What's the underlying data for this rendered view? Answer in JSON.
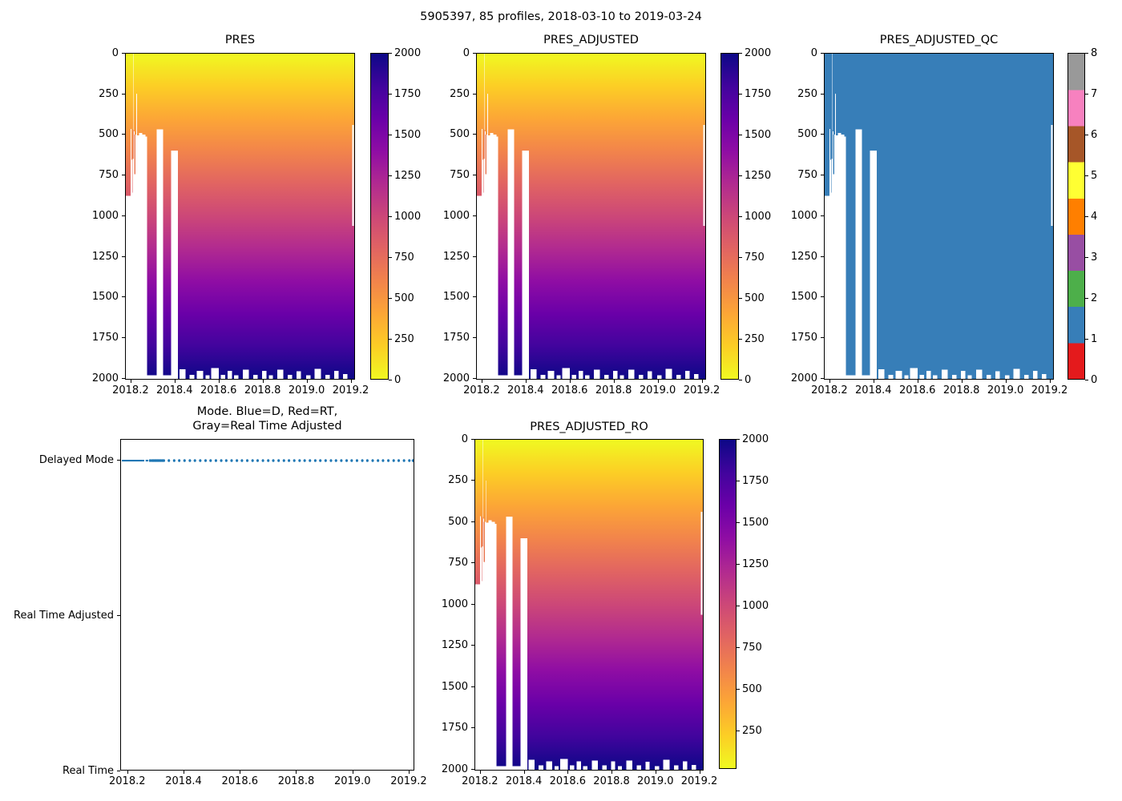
{
  "figure": {
    "title": "5905397, 85 profiles, 2018-03-10 to 2019-03-24"
  },
  "axes": {
    "x": {
      "lim": [
        2018.175,
        2019.22
      ],
      "ticks": [
        2018.2,
        2018.4,
        2018.6,
        2018.8,
        2019.0,
        2019.2
      ],
      "tick_labels": [
        "2018.2",
        "2018.4",
        "2018.6",
        "2018.8",
        "2019.0",
        "2019.2"
      ]
    },
    "depth": {
      "lim": [
        0,
        2010
      ],
      "ticks": [
        0,
        250,
        500,
        750,
        1000,
        1250,
        1500,
        1750,
        2000
      ],
      "tick_labels": [
        "0",
        "250",
        "500",
        "750",
        "1000",
        "1250",
        "1500",
        "1750",
        "2000"
      ]
    }
  },
  "colors": {
    "plasma_top_to_bottom": [
      "#f0f921",
      "#fcce25",
      "#fca636",
      "#f2844b",
      "#e16462",
      "#cc4778",
      "#b12a90",
      "#8f0da4",
      "#6a00a8",
      "#41049d",
      "#0d0887"
    ],
    "qc_palette_0_to_8": [
      "#e41a1c",
      "#377eb8",
      "#4daf4a",
      "#984ea3",
      "#ff7f00",
      "#ffff33",
      "#a65628",
      "#f781bf",
      "#999999"
    ],
    "qc_fill": "#377eb8",
    "mode_marker": "#1f77b4",
    "trace_line": "#e8744c",
    "gap_fill": "#ffffff"
  },
  "gaps": {
    "left_region_boundary": [
      [
        2018.175,
        880
      ],
      [
        2018.197,
        880
      ],
      [
        2018.197,
        465
      ],
      [
        2018.2005,
        465
      ],
      [
        2018.2005,
        655
      ],
      [
        2018.2035,
        655
      ],
      [
        2018.2035,
        860
      ],
      [
        2018.2065,
        860
      ],
      [
        2018.2065,
        470
      ],
      [
        2018.2095,
        470
      ],
      [
        2018.2095,
        140
      ],
      [
        2018.2125,
        140
      ],
      [
        2018.2125,
        480
      ],
      [
        2018.2155,
        480
      ],
      [
        2018.2155,
        745
      ],
      [
        2018.2185,
        745
      ],
      [
        2018.2185,
        500
      ],
      [
        2018.2225,
        500
      ],
      [
        2018.2225,
        248
      ],
      [
        2018.2255,
        248
      ],
      [
        2018.2255,
        505
      ],
      [
        2018.2355,
        505
      ],
      [
        2018.2355,
        490
      ],
      [
        2018.2505,
        490
      ],
      [
        2018.2505,
        500
      ],
      [
        2018.2655,
        500
      ],
      [
        2018.2655,
        512
      ],
      [
        2018.272,
        512
      ]
    ],
    "top_spike": [
      2018.2095,
      2018.2125,
      0,
      140
    ],
    "shallow_columns": [
      [
        2018.316,
        2018.346,
        468
      ],
      [
        2018.383,
        2018.414,
        600
      ]
    ],
    "bottom_notches": [
      [
        2018.272,
        2018.316,
        1988
      ],
      [
        2018.346,
        2018.383,
        1988
      ],
      [
        2018.42,
        2018.448,
        1950
      ],
      [
        2018.466,
        2018.488,
        1984
      ],
      [
        2018.5,
        2018.528,
        1960
      ],
      [
        2018.54,
        2018.558,
        1988
      ],
      [
        2018.565,
        2018.6,
        1944
      ],
      [
        2018.61,
        2018.63,
        1984
      ],
      [
        2018.64,
        2018.66,
        1960
      ],
      [
        2018.67,
        2018.69,
        1988
      ],
      [
        2018.71,
        2018.738,
        1954
      ],
      [
        2018.758,
        2018.778,
        1984
      ],
      [
        2018.798,
        2018.818,
        1960
      ],
      [
        2018.83,
        2018.848,
        1988
      ],
      [
        2018.868,
        2018.896,
        1954
      ],
      [
        2018.916,
        2018.936,
        1984
      ],
      [
        2018.956,
        2018.976,
        1962
      ],
      [
        2019.0,
        2019.02,
        1988
      ],
      [
        2019.038,
        2019.068,
        1948
      ],
      [
        2019.088,
        2019.108,
        1984
      ],
      [
        2019.128,
        2019.148,
        1960
      ],
      [
        2019.168,
        2019.188,
        1980
      ]
    ],
    "right_sliver": [
      2019.211,
      2019.218,
      440,
      1065
    ],
    "trace_lines": [
      [
        2018.2085,
        470,
        650
      ],
      [
        2018.216,
        500,
        745
      ]
    ]
  },
  "chart_data": [
    {
      "id": "pres",
      "type": "heatmap",
      "title": "PRES",
      "value": "pressure (dbar), increases with depth 0 to 2000",
      "colorbar": {
        "vmin": 0,
        "vmax": 2000,
        "ticks": [
          0,
          250,
          500,
          750,
          1000,
          1250,
          1500,
          1750,
          2000
        ],
        "tick_labels": [
          "0",
          "250",
          "500",
          "750",
          "1000",
          "1250",
          "1500",
          "1750",
          "2000"
        ]
      }
    },
    {
      "id": "pres-adjusted",
      "type": "heatmap",
      "title": "PRES_ADJUSTED",
      "value": "pressure (dbar), increases with depth 0 to 2000",
      "colorbar": {
        "vmin": 0,
        "vmax": 2000,
        "ticks": [
          0,
          250,
          500,
          750,
          1000,
          1250,
          1500,
          1750,
          2000
        ],
        "tick_labels": [
          "0",
          "250",
          "500",
          "750",
          "1000",
          "1250",
          "1500",
          "1750",
          "2000"
        ]
      }
    },
    {
      "id": "pres-adjusted-qc",
      "type": "heatmap",
      "title": "PRES_ADJUSTED_QC",
      "dominant_value": 1,
      "colorbar": {
        "vmin": 0,
        "vmax": 8,
        "ticks": [
          0,
          1,
          2,
          3,
          4,
          5,
          6,
          7,
          8
        ],
        "tick_labels": [
          "0",
          "1",
          "2",
          "3",
          "4",
          "5",
          "6",
          "7",
          "8"
        ],
        "categorical": true
      }
    },
    {
      "id": "mode",
      "type": "scatter",
      "title": "Mode. Blue=D, Red=RT,\nGray=Real Time Adjusted",
      "y_categories": [
        "Delayed Mode",
        "Real Time Adjusted",
        "Real Time"
      ],
      "series_value": "Delayed Mode",
      "solid_segment": [
        2018.178,
        2018.258
      ],
      "dash_segment": [
        2018.263,
        2018.272
      ],
      "dot_x": [
        2018.279,
        2018.286,
        2018.292,
        2018.298,
        2018.304,
        2018.31,
        2018.316,
        2018.322,
        2018.328,
        2018.346,
        2018.365,
        2018.383,
        2018.402,
        2018.421,
        2018.439,
        2018.458,
        2018.477,
        2018.495,
        2018.514,
        2018.533,
        2018.551,
        2018.57,
        2018.589,
        2018.607,
        2018.626,
        2018.645,
        2018.663,
        2018.682,
        2018.701,
        2018.719,
        2018.738,
        2018.757,
        2018.775,
        2018.794,
        2018.813,
        2018.831,
        2018.85,
        2018.869,
        2018.887,
        2018.906,
        2018.925,
        2018.943,
        2018.962,
        2018.981,
        2018.999,
        2019.018,
        2019.037,
        2019.055,
        2019.074,
        2019.093,
        2019.111,
        2019.13,
        2019.149,
        2019.167,
        2019.186,
        2019.205,
        2019.218
      ]
    },
    {
      "id": "pres-adjusted-ro",
      "type": "heatmap",
      "title": "PRES_ADJUSTED_RO",
      "value": "pressure (dbar), increases with depth 0 to 2000",
      "colorbar": {
        "vmin": 19,
        "vmax": 2000,
        "ticks": [
          250,
          500,
          750,
          1000,
          1250,
          1500,
          1750,
          2000
        ],
        "tick_labels": [
          "250",
          "500",
          "750",
          "1000",
          "1250",
          "1500",
          "1750",
          "2000"
        ]
      }
    }
  ]
}
